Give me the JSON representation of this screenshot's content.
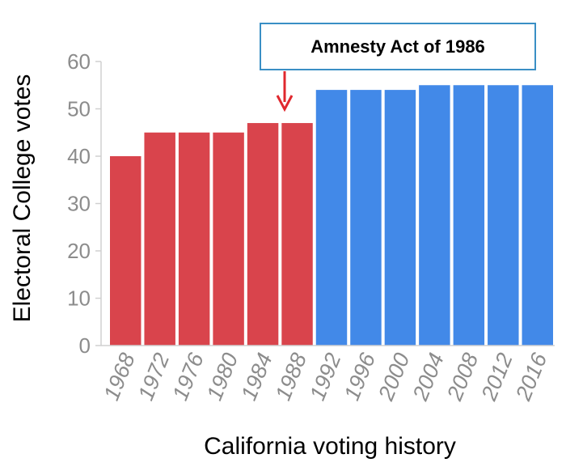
{
  "chart_data": {
    "type": "bar",
    "title": "",
    "xlabel": "California voting history",
    "ylabel": "Electoral College votes",
    "ylim": [
      0,
      60
    ],
    "yticks": [
      0,
      10,
      20,
      30,
      40,
      50,
      60
    ],
    "grid": false,
    "categories": [
      "1968",
      "1972",
      "1976",
      "1980",
      "1984",
      "1988",
      "1992",
      "1996",
      "2000",
      "2004",
      "2008",
      "2012",
      "2016"
    ],
    "values": [
      40,
      45,
      45,
      45,
      47,
      47,
      54,
      54,
      54,
      55,
      55,
      55,
      55
    ],
    "colors": [
      "#d9444c",
      "#d9444c",
      "#d9444c",
      "#d9444c",
      "#d9444c",
      "#d9444c",
      "#4289e8",
      "#4289e8",
      "#4289e8",
      "#4289e8",
      "#4289e8",
      "#4289e8",
      "#4289e8"
    ],
    "annotation": {
      "text": "Amnesty Act of 1986",
      "points_to": "1988",
      "arrow_color": "#e0282e",
      "box_border_color": "#3a8fc5"
    }
  }
}
